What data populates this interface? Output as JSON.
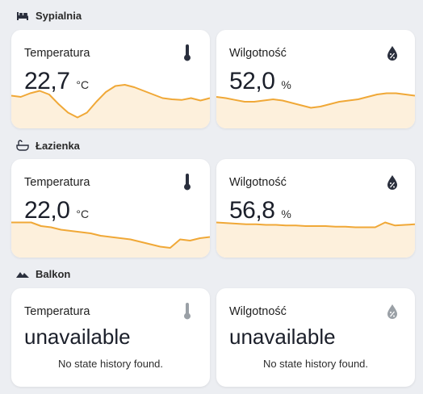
{
  "sections": [
    {
      "title": "Sypialnia",
      "icon": "bed-icon",
      "cards": [
        {
          "name": "Temperatura",
          "icon": "thermometer-icon",
          "value": "22,7",
          "unit": "°C",
          "history": [
            54,
            52,
            58,
            62,
            56,
            40,
            26,
            18,
            26,
            44,
            60,
            70,
            72,
            68,
            62,
            56,
            50,
            48,
            47,
            50,
            46,
            50
          ]
        },
        {
          "name": "Wilgotność",
          "icon": "water-percent-icon",
          "value": "52,0",
          "unit": "%",
          "history": [
            52,
            50,
            47,
            44,
            44,
            46,
            48,
            46,
            42,
            38,
            34,
            36,
            40,
            44,
            46,
            48,
            52,
            56,
            58,
            58,
            56,
            54
          ]
        }
      ]
    },
    {
      "title": "Łazienka",
      "icon": "bathtub-icon",
      "cards": [
        {
          "name": "Temperatura",
          "icon": "thermometer-icon",
          "value": "22,0",
          "unit": "°C",
          "history": [
            58,
            58,
            58,
            52,
            50,
            46,
            44,
            42,
            40,
            36,
            34,
            32,
            30,
            26,
            22,
            18,
            16,
            30,
            28,
            32,
            34
          ]
        },
        {
          "name": "Wilgotność",
          "icon": "water-percent-icon",
          "value": "56,8",
          "unit": "%",
          "history": [
            58,
            57,
            56,
            55,
            55,
            54,
            54,
            53,
            53,
            52,
            52,
            52,
            51,
            51,
            50,
            50,
            50,
            58,
            53,
            54,
            55
          ]
        }
      ]
    },
    {
      "title": "Balkon",
      "icon": "terrain-icon",
      "cards": [
        {
          "name": "Temperatura",
          "icon": "thermometer-icon",
          "state": "unavailable",
          "message": "No state history found."
        },
        {
          "name": "Wilgotność",
          "icon": "water-percent-icon",
          "state": "unavailable",
          "message": "No state history found."
        }
      ]
    }
  ],
  "colors": {
    "line": "#f0a837",
    "fill": "#fdf0dc",
    "icon_active": "#2a2f3d",
    "icon_inactive": "#9aa0a6"
  }
}
